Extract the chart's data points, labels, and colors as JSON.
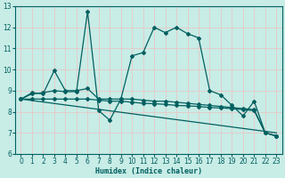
{
  "xlabel": "Humidex (Indice chaleur)",
  "xlim": [
    -0.5,
    23.5
  ],
  "ylim": [
    6,
    13
  ],
  "xticks": [
    0,
    1,
    2,
    3,
    4,
    5,
    6,
    7,
    8,
    9,
    10,
    11,
    12,
    13,
    14,
    15,
    16,
    17,
    18,
    19,
    20,
    21,
    22,
    23
  ],
  "yticks": [
    6,
    7,
    8,
    9,
    10,
    11,
    12,
    13
  ],
  "bg_color": "#c8ece6",
  "grid_color": "#e8c8c8",
  "line_color": "#006060",
  "lines": [
    {
      "x": [
        0,
        1,
        2,
        3,
        4,
        5,
        6,
        7,
        8,
        9,
        10,
        11,
        12,
        13,
        14,
        15,
        16,
        17,
        18,
        19,
        20,
        21,
        22,
        23
      ],
      "y": [
        8.6,
        8.85,
        8.9,
        9.0,
        8.95,
        8.95,
        12.75,
        8.05,
        7.6,
        8.6,
        10.65,
        10.8,
        12.0,
        11.75,
        12.0,
        11.7,
        11.5,
        9.0,
        8.8,
        8.3,
        7.8,
        8.5,
        7.0,
        6.85
      ],
      "marker": true
    },
    {
      "x": [
        0,
        1,
        2,
        3,
        4,
        5,
        6,
        7,
        8,
        9,
        10,
        11,
        12,
        13,
        14,
        15,
        16,
        17,
        18,
        19,
        20,
        21,
        22,
        23
      ],
      "y": [
        8.6,
        8.9,
        8.85,
        9.95,
        9.0,
        9.0,
        9.1,
        8.6,
        8.6,
        8.6,
        8.6,
        8.55,
        8.5,
        8.5,
        8.45,
        8.4,
        8.35,
        8.3,
        8.25,
        8.2,
        8.15,
        8.1,
        7.0,
        6.85
      ],
      "marker": true
    },
    {
      "x": [
        0,
        23
      ],
      "y": [
        8.6,
        7.0
      ],
      "marker": false
    },
    {
      "x": [
        0,
        1,
        2,
        3,
        4,
        5,
        6,
        7,
        8,
        9,
        10,
        11,
        12,
        13,
        14,
        15,
        16,
        17,
        18,
        19,
        20,
        21,
        22,
        23
      ],
      "y": [
        8.6,
        8.6,
        8.6,
        8.6,
        8.6,
        8.6,
        8.6,
        8.55,
        8.5,
        8.5,
        8.45,
        8.4,
        8.38,
        8.35,
        8.3,
        8.28,
        8.25,
        8.2,
        8.18,
        8.15,
        8.1,
        8.05,
        7.0,
        6.85
      ],
      "marker": true
    }
  ]
}
